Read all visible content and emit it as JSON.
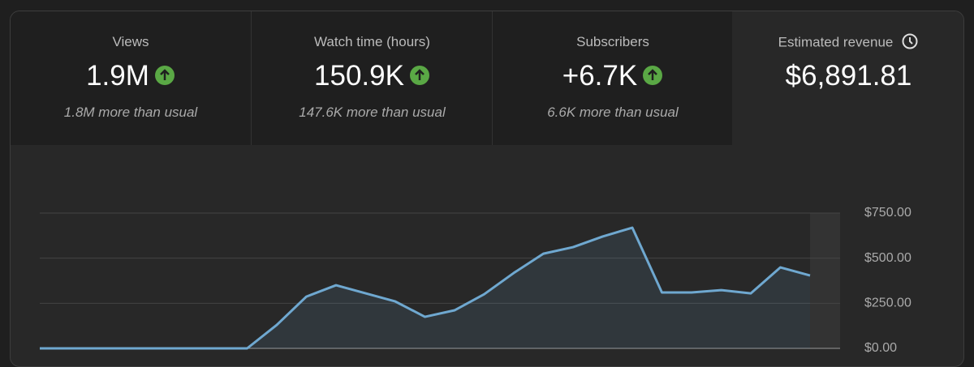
{
  "cards": [
    {
      "label": "Views",
      "value": "1.9M",
      "note": "1.8M more than usual"
    },
    {
      "label": "Watch time (hours)",
      "value": "150.9K",
      "note": "147.6K more than usual"
    },
    {
      "label": "Subscribers",
      "value": "+6.7K",
      "note": "6.6K more than usual"
    },
    {
      "label": "Estimated revenue",
      "value": "$6,891.81"
    }
  ],
  "chart_data": {
    "type": "line",
    "color": "#6fa8d0",
    "grid": true,
    "ylim": [
      0,
      750
    ],
    "yticks": [
      {
        "value": 0,
        "label": "$0.00"
      },
      {
        "value": 250,
        "label": "$250.00"
      },
      {
        "value": 500,
        "label": "$500.00"
      },
      {
        "value": 750,
        "label": "$750.00"
      }
    ],
    "values": [
      0,
      0,
      0,
      0,
      0,
      0,
      0,
      0,
      130,
      287,
      350,
      305,
      260,
      175,
      211,
      300,
      418,
      525,
      561,
      620,
      669,
      310,
      310,
      323,
      305,
      449,
      404
    ]
  }
}
